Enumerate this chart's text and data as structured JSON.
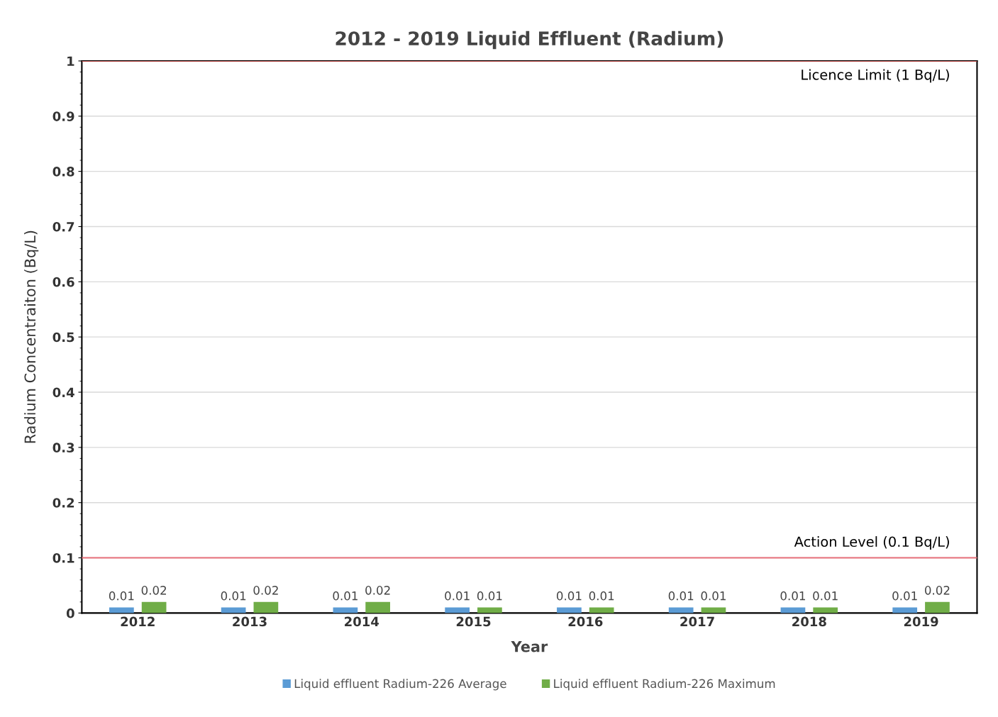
{
  "chart_data": {
    "type": "bar",
    "title": "2012 - 2019 Liquid Effluent (Radium)",
    "xlabel": "Year",
    "ylabel": "Radium Concentraiton (Bq/L)",
    "categories": [
      "2012",
      "2013",
      "2014",
      "2015",
      "2016",
      "2017",
      "2018",
      "2019"
    ],
    "series": [
      {
        "name": "Liquid effluent Radium-226 Average",
        "color": "#5b9bd5",
        "values": [
          0.01,
          0.01,
          0.01,
          0.01,
          0.01,
          0.01,
          0.01,
          0.01
        ]
      },
      {
        "name": "Liquid effluent Radium-226 Maximum",
        "color": "#70ad47",
        "values": [
          0.02,
          0.02,
          0.02,
          0.01,
          0.01,
          0.01,
          0.01,
          0.02
        ]
      }
    ],
    "ylim": [
      0,
      1
    ],
    "yticks": [
      0,
      0.1,
      0.2,
      0.3,
      0.4,
      0.5,
      0.6,
      0.7,
      0.8,
      0.9,
      1
    ],
    "ref_lines": [
      {
        "axis": "y",
        "value": 1,
        "label": "Licence Limit (1 Bq/L)",
        "color": "#c0504d"
      },
      {
        "axis": "y",
        "value": 0.1,
        "label": "Action Level (0.1 Bq/L)",
        "color": "#e8707a"
      }
    ],
    "data_labels": true,
    "grid": "y",
    "legend": "bottom"
  }
}
